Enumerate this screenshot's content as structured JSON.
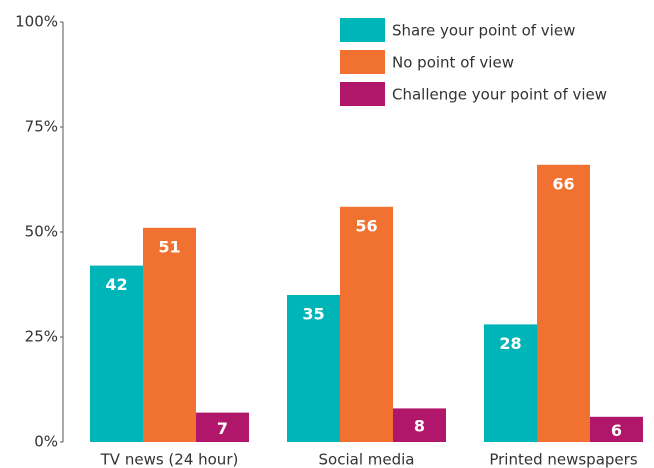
{
  "chart_data": {
    "type": "bar",
    "categories": [
      "TV news (24 hour)",
      "Social media",
      "Printed newspapers"
    ],
    "series": [
      {
        "name": "Share your point of view",
        "color": "#00b5b8",
        "values": [
          42,
          35,
          28
        ]
      },
      {
        "name": "No point of view",
        "color": "#f07130",
        "values": [
          51,
          56,
          66
        ]
      },
      {
        "name": "Challenge your point of view",
        "color": "#b0176a",
        "values": [
          7,
          8,
          6
        ]
      }
    ],
    "ylim": [
      0,
      100
    ],
    "yticks": [
      {
        "value": 0,
        "label": "0%"
      },
      {
        "value": 25,
        "label": "25%"
      },
      {
        "value": 50,
        "label": "50%"
      },
      {
        "value": 75,
        "label": "75%"
      },
      {
        "value": 100,
        "label": "100%"
      }
    ],
    "grid": false,
    "legend": "top-right"
  }
}
